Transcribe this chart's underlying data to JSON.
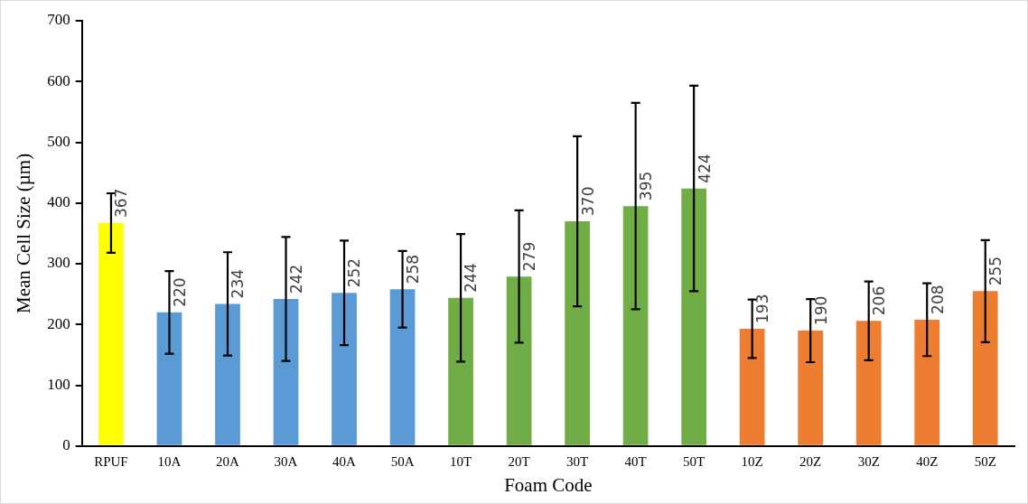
{
  "chart_data": {
    "type": "bar",
    "xlabel": "Foam Code",
    "ylabel": "Mean Cell Size (µm)",
    "categories": [
      "RPUF",
      "10A",
      "20A",
      "30A",
      "40A",
      "50A",
      "10T",
      "20T",
      "30T",
      "40T",
      "50T",
      "10Z",
      "20Z",
      "30Z",
      "40Z",
      "50Z"
    ],
    "values": [
      367,
      220,
      234,
      242,
      252,
      258,
      244,
      279,
      370,
      395,
      424,
      193,
      190,
      206,
      208,
      255
    ],
    "colors": [
      "#ffff00",
      "#5b9bd5",
      "#5b9bd5",
      "#5b9bd5",
      "#5b9bd5",
      "#5b9bd5",
      "#70ad47",
      "#70ad47",
      "#70ad47",
      "#70ad47",
      "#70ad47",
      "#ed7d31",
      "#ed7d31",
      "#ed7d31",
      "#ed7d31",
      "#ed7d31"
    ],
    "errors": [
      49,
      68,
      85,
      102,
      86,
      63,
      105,
      109,
      140,
      170,
      169,
      48,
      52,
      65,
      60,
      84
    ],
    "ylim": [
      0,
      700
    ],
    "yticks": [
      0,
      100,
      200,
      300,
      400,
      500,
      600,
      700
    ],
    "data_labels": true,
    "grid": false,
    "legend": false
  }
}
